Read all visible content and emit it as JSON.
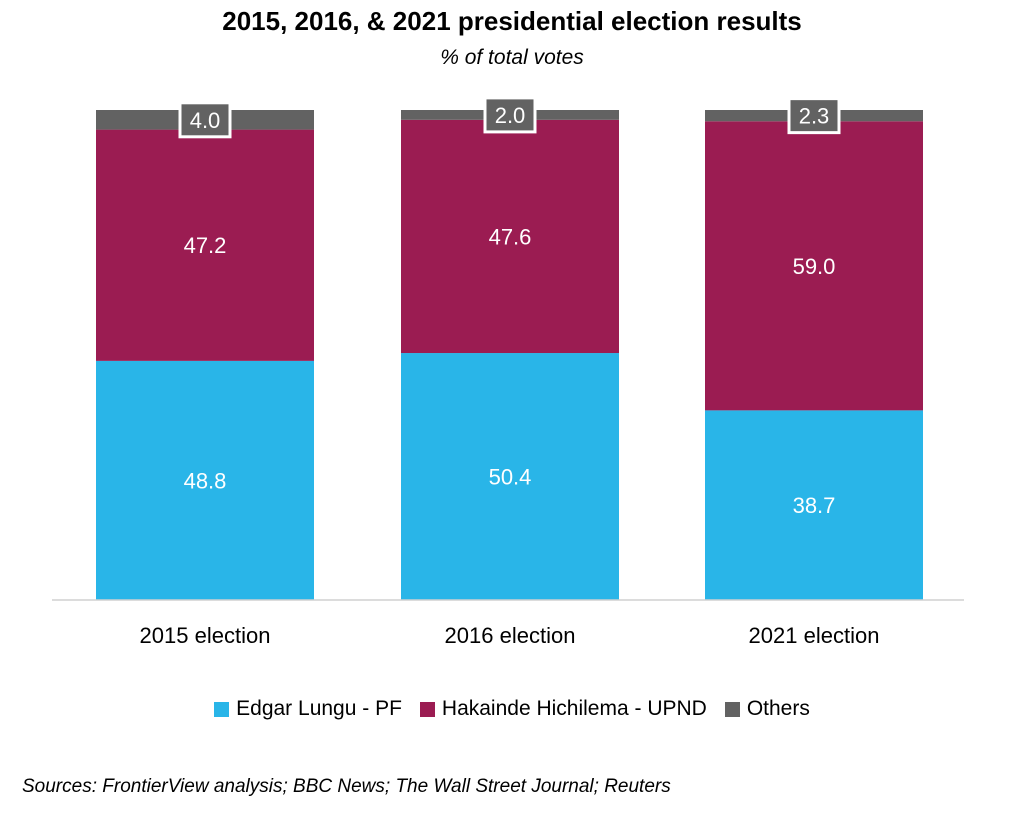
{
  "title": "2015, 2016, & 2021 presidential election results",
  "subtitle": "% of total votes",
  "source": "Sources: FrontierView analysis; BBC News; The Wall Street Journal; Reuters",
  "colors": {
    "lungu": "#29b5e8",
    "hichilema": "#9b1c52",
    "others": "#626262"
  },
  "chart_data": {
    "type": "bar",
    "stacked": true,
    "categories": [
      "2015 election",
      "2016 election",
      "2021 election"
    ],
    "series": [
      {
        "name": "Edgar Lungu - PF",
        "values": [
          48.8,
          50.4,
          38.7
        ],
        "color": "#29b5e8"
      },
      {
        "name": "Hakainde Hichilema - UPND",
        "values": [
          47.2,
          47.6,
          59.0
        ],
        "color": "#9b1c52"
      },
      {
        "name": "Others",
        "values": [
          4.0,
          2.0,
          2.3
        ],
        "color": "#626262"
      }
    ],
    "ylim": [
      0,
      100
    ],
    "grid": false,
    "legend_position": "bottom"
  }
}
